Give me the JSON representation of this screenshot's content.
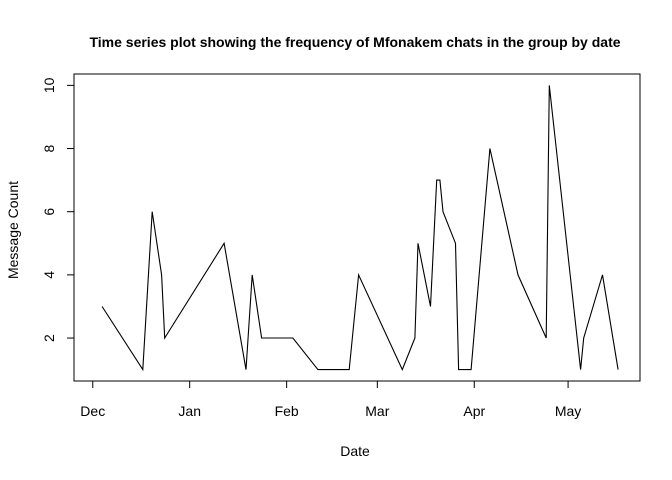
{
  "chart_data": {
    "type": "line",
    "title": "Time series plot showing the frequency of Mfonakem chats in the group by date",
    "xlabel": "Date",
    "ylabel": "Message Count",
    "x_ticks": [
      {
        "date": "2019-12-01",
        "label": "Dec"
      },
      {
        "date": "2020-01-01",
        "label": "Jan"
      },
      {
        "date": "2020-02-01",
        "label": "Feb"
      },
      {
        "date": "2020-03-01",
        "label": "Mar"
      },
      {
        "date": "2020-04-01",
        "label": "Apr"
      },
      {
        "date": "2020-05-01",
        "label": "May"
      }
    ],
    "y_ticks": [
      2,
      4,
      6,
      8,
      10
    ],
    "xlim": [
      "2019-11-25",
      "2020-05-24"
    ],
    "ylim": [
      0.64,
      10.36
    ],
    "grid": false,
    "line_color": "#000000",
    "series": [
      {
        "x": [
          "2019-12-04",
          "2019-12-17",
          "2019-12-20",
          "2019-12-23",
          "2019-12-24",
          "2020-01-12",
          "2020-01-19",
          "2020-01-21",
          "2020-01-24",
          "2020-02-03",
          "2020-02-11",
          "2020-02-21",
          "2020-02-24",
          "2020-03-09",
          "2020-03-13",
          "2020-03-14",
          "2020-03-18",
          "2020-03-20",
          "2020-03-21",
          "2020-03-22",
          "2020-03-26",
          "2020-03-27",
          "2020-03-31",
          "2020-04-06",
          "2020-04-15",
          "2020-04-24",
          "2020-04-25",
          "2020-05-05",
          "2020-05-06",
          "2020-05-12",
          "2020-05-17"
        ],
        "y": [
          3,
          1,
          6,
          4,
          2,
          5,
          1,
          4,
          2,
          2,
          1,
          1,
          4,
          1,
          2,
          5,
          3,
          7,
          7,
          6,
          5,
          1,
          1,
          8,
          4,
          2,
          10,
          1,
          2,
          4,
          1
        ]
      }
    ]
  }
}
